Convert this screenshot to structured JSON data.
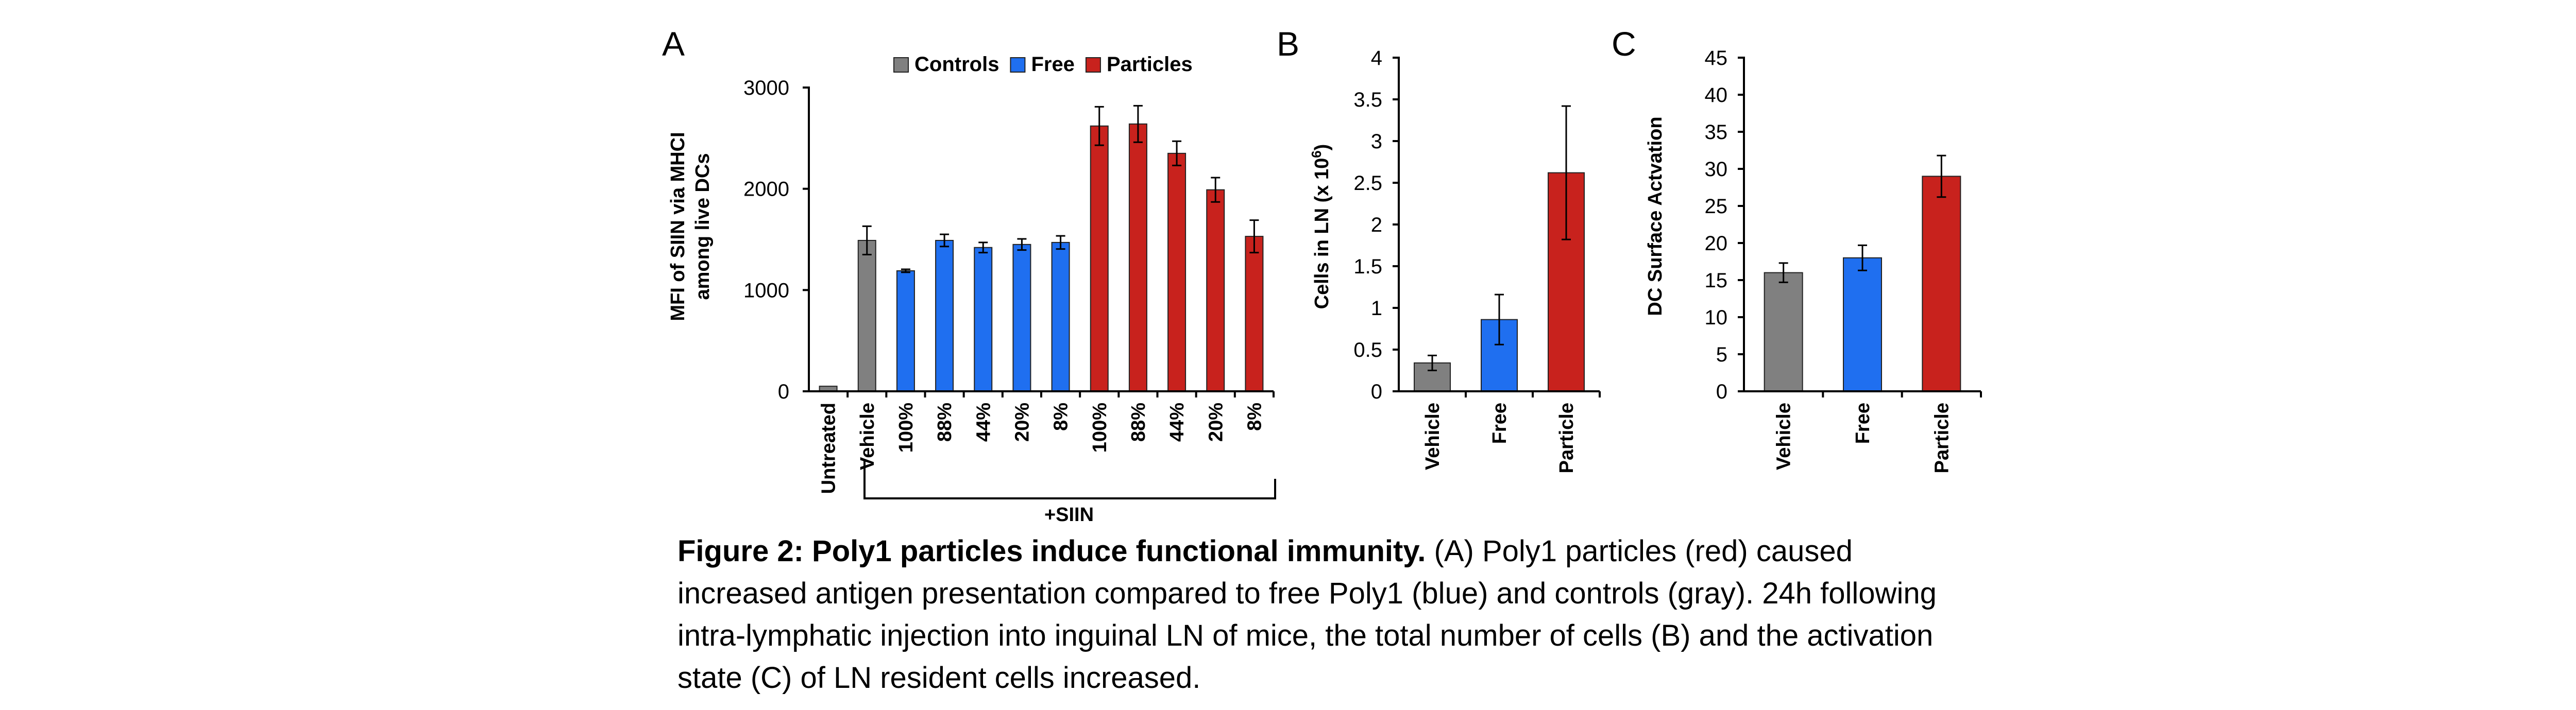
{
  "figure": {
    "caption_title": "Figure 2: Poly1 particles induce functional immunity.",
    "caption_text": " (A) Poly1 particles (red) caused increased antigen presentation compared to free Poly1 (blue) and controls (gray). 24h following intra-lymphatic injection into inguinal LN of mice, the total number of cells (B) and the activation state (C) of LN resident cells increased."
  },
  "colors": {
    "controls": "#808080",
    "free": "#1F6FF0",
    "particles": "#C8221D"
  },
  "chart_data": [
    {
      "panel": "A",
      "type": "bar",
      "ylabel_line1": "MFI of SIIN via MHCI",
      "ylabel_line2": "among  live  DCs",
      "ylim": [
        0,
        3000
      ],
      "yticks": [
        0,
        1000,
        2000,
        3000
      ],
      "ytick_labels": [
        "0",
        "1000",
        "2000",
        "3000"
      ],
      "legend": {
        "placement": "top",
        "entries": [
          {
            "label": "Controls",
            "group": "controls"
          },
          {
            "label": "Free",
            "group": "free"
          },
          {
            "label": "Particles",
            "group": "particles"
          }
        ]
      },
      "bracket_label": "+SIIN",
      "categories": [
        "Untreated",
        "Vehicle",
        "100%",
        "88%",
        "44%",
        "20%",
        "8%",
        "100%",
        "88%",
        "44%",
        "20%",
        "8%"
      ],
      "values": [
        50,
        1490,
        1190,
        1490,
        1420,
        1450,
        1470,
        2620,
        2640,
        2350,
        1990,
        1530
      ],
      "errors": [
        0,
        140,
        15,
        60,
        50,
        55,
        65,
        190,
        180,
        120,
        120,
        160
      ],
      "groups": [
        "controls",
        "controls",
        "free",
        "free",
        "free",
        "free",
        "free",
        "particles",
        "particles",
        "particles",
        "particles",
        "particles"
      ]
    },
    {
      "panel": "B",
      "type": "bar",
      "ylabel_main": "Cells in LN (x 10",
      "ylabel_sup": "6",
      "ylabel_end": ")",
      "ylim": [
        0,
        4
      ],
      "yticks": [
        0,
        0.5,
        1,
        1.5,
        2,
        2.5,
        3,
        3.5,
        4
      ],
      "ytick_labels": [
        "0",
        "0.5",
        "1",
        "1.5",
        "2",
        "2.5",
        "3",
        "3.5",
        "4"
      ],
      "categories": [
        "Vehicle",
        "Free",
        "Particle"
      ],
      "values": [
        0.34,
        0.86,
        2.62
      ],
      "errors": [
        0.09,
        0.3,
        0.8
      ],
      "groups": [
        "controls",
        "free",
        "particles"
      ]
    },
    {
      "panel": "C",
      "type": "bar",
      "ylabel": "DC Surface Actvation",
      "ylim": [
        0,
        45
      ],
      "yticks": [
        0,
        5,
        10,
        15,
        20,
        25,
        30,
        35,
        40,
        45
      ],
      "ytick_labels": [
        "0",
        "5",
        "10",
        "15",
        "20",
        "25",
        "30",
        "35",
        "40",
        "45"
      ],
      "categories": [
        "Vehicle",
        "Free",
        "Particle"
      ],
      "values": [
        16,
        18,
        29
      ],
      "errors": [
        1.3,
        1.7,
        2.8
      ],
      "groups": [
        "controls",
        "free",
        "particles"
      ]
    }
  ]
}
